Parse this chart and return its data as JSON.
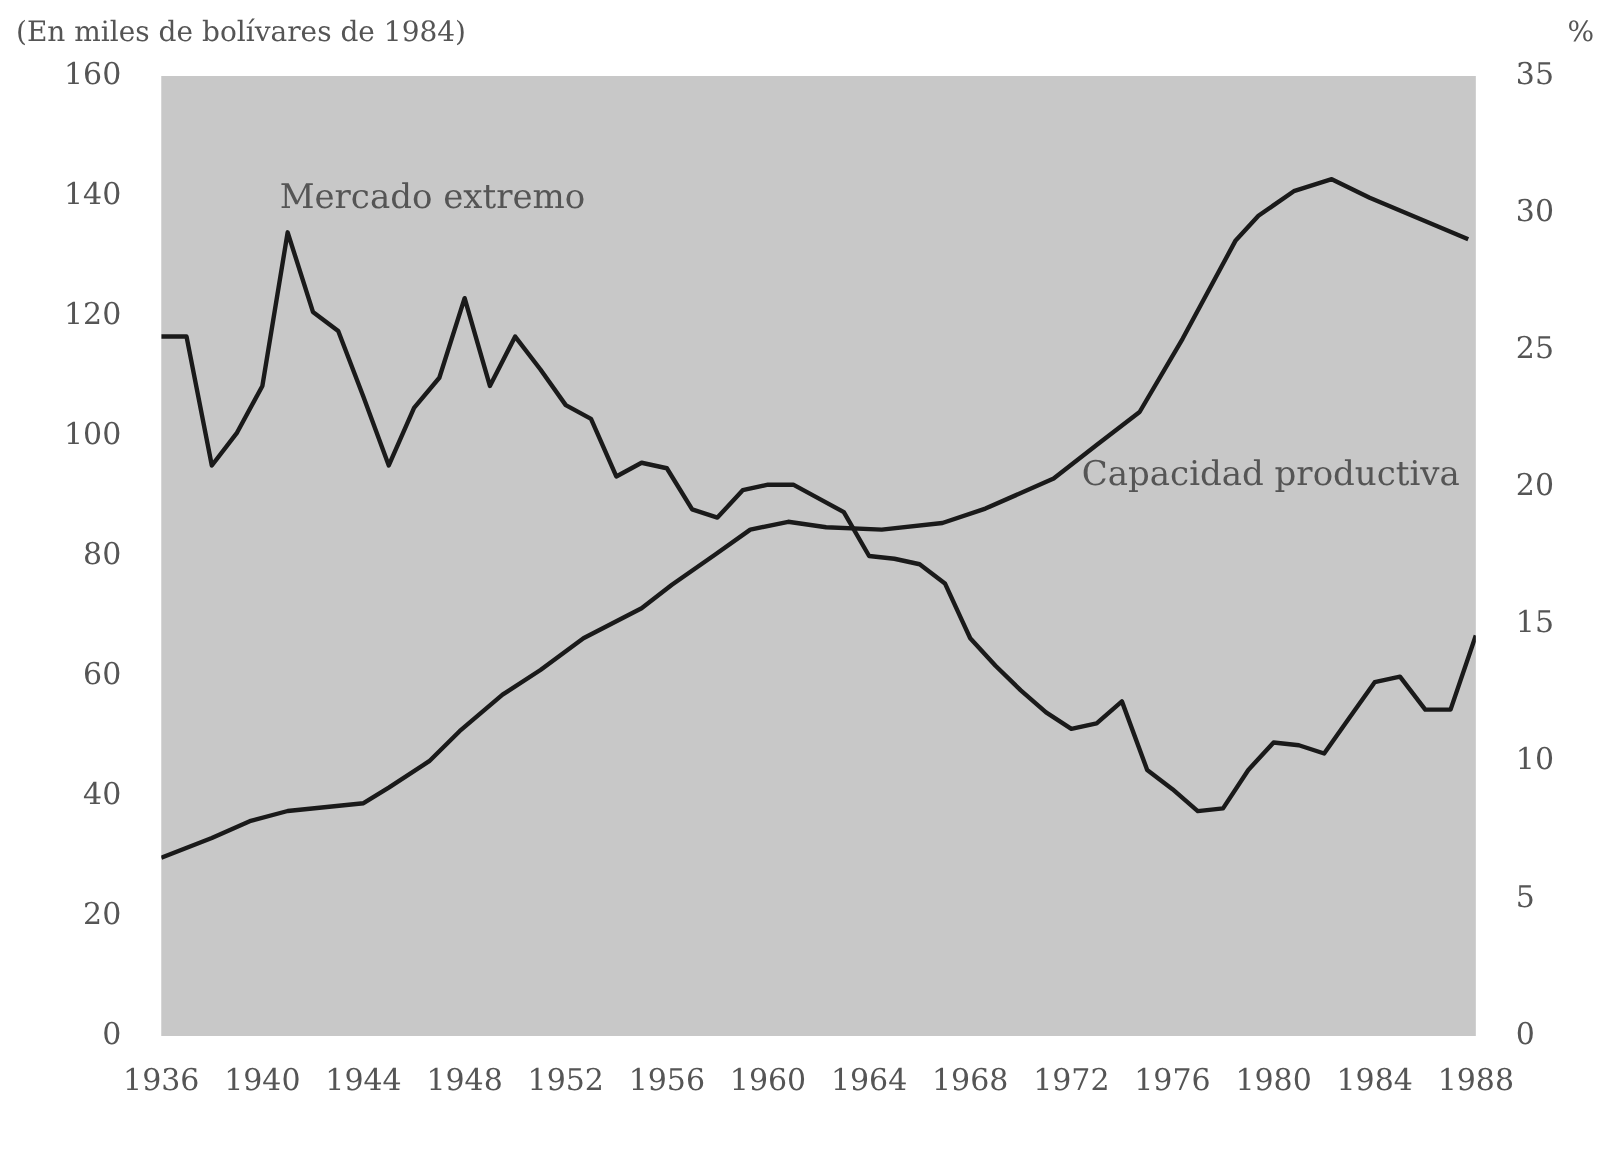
{
  "chart_data": {
    "type": "line",
    "ylabel": "(En miles de bolívares de 1984)",
    "y2label": "%",
    "xlim": [
      1936,
      1988
    ],
    "xticks": [
      1936,
      1940,
      1944,
      1948,
      1952,
      1956,
      1960,
      1964,
      1968,
      1972,
      1976,
      1980,
      1984,
      1988
    ],
    "ylim": [
      0,
      160
    ],
    "yticks": [
      0,
      20,
      40,
      60,
      80,
      100,
      120,
      140,
      160
    ],
    "y2lim": [
      0,
      35
    ],
    "y2ticks": [
      0,
      5,
      10,
      15,
      20,
      25,
      30,
      35
    ],
    "grid": false,
    "legend": false,
    "marker": "none",
    "line_style": "solid",
    "series": [
      {
        "name": "Mercado extremo",
        "color": "#1a1a1a",
        "axis": "y2",
        "x": [
          1936,
          1937,
          1938,
          1939,
          1940,
          1941,
          1942,
          1943,
          1944,
          1945,
          1946,
          1947,
          1948,
          1949,
          1950,
          1951,
          1952,
          1953,
          1954,
          1955,
          1956,
          1957,
          1958,
          1959,
          1960,
          1961,
          1962,
          1963,
          1964,
          1965,
          1966,
          1967,
          1967.7,
          1968,
          1969,
          1970,
          1971,
          1972,
          1973,
          1974,
          1975,
          1976,
          1977,
          1978,
          1979,
          1980,
          1981,
          1982,
          1983,
          1984,
          1985,
          1986,
          1987,
          1988
        ],
        "values": [
          25.5,
          25.5,
          20.8,
          22,
          23.7,
          29.3,
          26.4,
          25.7,
          23.3,
          20.8,
          22.9,
          24,
          26.9,
          23.7,
          25.5,
          24.3,
          23,
          22.5,
          20.4,
          20.9,
          20.7,
          19.2,
          18.9,
          19.9,
          20.1,
          20.1,
          19.6,
          19.1,
          17.5,
          17.4,
          17.2,
          16.5,
          15.1,
          14.5,
          13.5,
          12.6,
          11.8,
          11.2,
          11.4,
          12.2,
          9.7,
          9,
          8.2,
          8.3,
          9.7,
          10.7,
          10.6,
          10.3,
          11.6,
          12.9,
          13.1,
          11.9,
          11.9,
          14.6
        ]
      },
      {
        "name": "Capacidad productiva",
        "color": "#1a1a1a",
        "axis": "y",
        "x": [
          1936,
          1938,
          1939.5,
          1941,
          1944,
          1945,
          1946.6,
          1947.8,
          1949.5,
          1951,
          1952.7,
          1955,
          1956.2,
          1957.9,
          1959.3,
          1960.8,
          1962.3,
          1964.5,
          1966.9,
          1968.6,
          1971.3,
          1973,
          1974.7,
          1976.4,
          1978.5,
          1979.4,
          1980.8,
          1982.3,
          1983.8,
          1987.7
        ],
        "values": [
          29.7,
          33,
          35.8,
          37.5,
          38.8,
          41.4,
          45.8,
          50.8,
          56.9,
          61,
          66.3,
          71.3,
          75.2,
          80.2,
          84.4,
          85.7,
          84.8,
          84.4,
          85.5,
          87.9,
          92.9,
          98.5,
          104,
          116.2,
          132.6,
          136.7,
          140.8,
          142.8,
          139.7,
          132.8
        ]
      }
    ]
  }
}
